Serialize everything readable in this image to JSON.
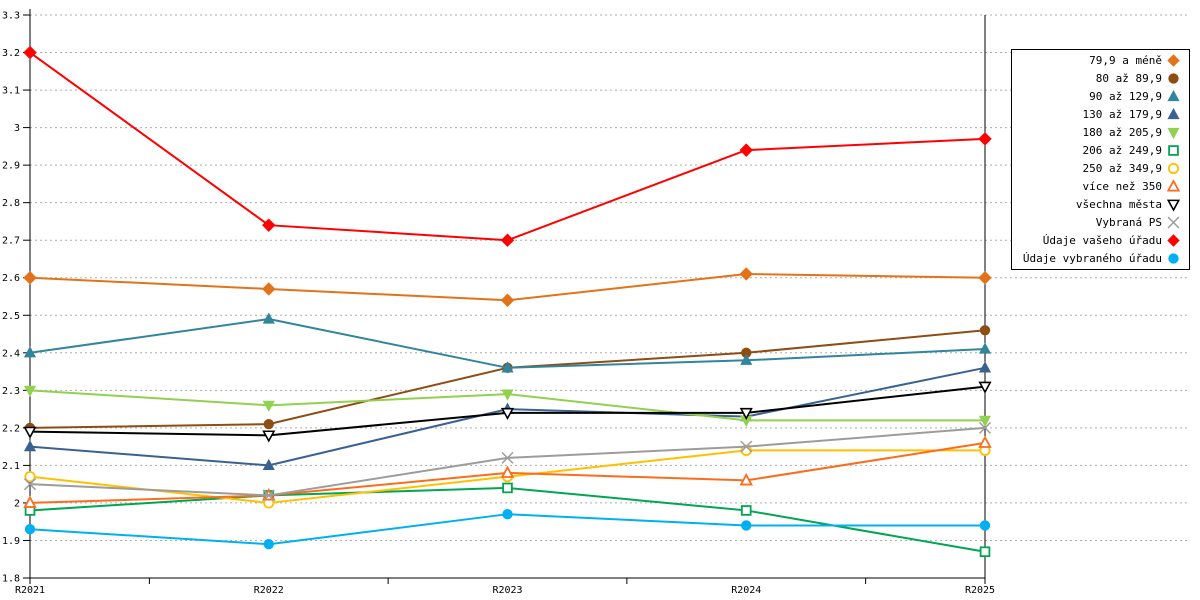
{
  "chart_data": {
    "type": "line",
    "title": "",
    "xlabel": "",
    "ylabel": "",
    "categories": [
      "R2021",
      "R2022",
      "R2023",
      "R2024",
      "R2025"
    ],
    "ylim": [
      1.8,
      3.3
    ],
    "y_tick_step": 0.1,
    "y_ticks": [
      "1.8",
      "1.9",
      "2",
      "2.1",
      "2.2",
      "2.3",
      "2.4",
      "2.5",
      "2.6",
      "2.7",
      "2.8",
      "2.9",
      "3",
      "3.1",
      "3.2",
      "3.3"
    ],
    "grid": "horizontal-dotted",
    "grid_color": "#ADADAD",
    "axis_color": "#000000",
    "legend_position": "right",
    "series": [
      {
        "name": "79,9 a méně",
        "color": "#E2731A",
        "marker": "diamond",
        "filled": true,
        "values": [
          2.6,
          2.57,
          2.54,
          2.61,
          2.6
        ]
      },
      {
        "name": "80 až 89,9",
        "color": "#8E4D13",
        "marker": "circle",
        "filled": true,
        "values": [
          2.2,
          2.21,
          2.36,
          2.4,
          2.46
        ]
      },
      {
        "name": "90 až 129,9",
        "color": "#31859C",
        "marker": "triangle-up",
        "filled": true,
        "values": [
          2.4,
          2.49,
          2.36,
          2.38,
          2.41
        ]
      },
      {
        "name": "130 až 179,9",
        "color": "#3A6191",
        "marker": "triangle-up",
        "filled": true,
        "values": [
          2.15,
          2.1,
          2.25,
          2.23,
          2.36
        ]
      },
      {
        "name": "180 až 205,9",
        "color": "#92D050",
        "marker": "triangle-down",
        "filled": true,
        "values": [
          2.3,
          2.26,
          2.29,
          2.22,
          2.22
        ]
      },
      {
        "name": "206 až 249,9",
        "color": "#00A651",
        "marker": "square",
        "filled": false,
        "values": [
          1.98,
          2.02,
          2.04,
          1.98,
          1.87
        ]
      },
      {
        "name": "250 až 349,9",
        "color": "#FFC000",
        "marker": "circle",
        "filled": false,
        "values": [
          2.07,
          2.0,
          2.07,
          2.14,
          2.14
        ]
      },
      {
        "name": "více než 350",
        "color": "#FB6D1D",
        "marker": "triangle-up",
        "filled": false,
        "values": [
          2.0,
          2.02,
          2.08,
          2.06,
          2.16
        ]
      },
      {
        "name": "všechna města",
        "color": "#000000",
        "marker": "triangle-down",
        "filled": false,
        "values": [
          2.19,
          2.18,
          2.24,
          2.24,
          2.31
        ]
      },
      {
        "name": "Vybraná PS",
        "color": "#9C9C9C",
        "marker": "x",
        "filled": false,
        "values": [
          2.05,
          2.02,
          2.12,
          2.15,
          2.2
        ]
      },
      {
        "name": "Údaje vašeho úřadu",
        "color": "#FF0000",
        "marker": "diamond",
        "filled": true,
        "values": [
          3.2,
          2.74,
          2.7,
          2.94,
          2.97
        ]
      },
      {
        "name": "Údaje vybraného úřadu",
        "color": "#00B0F0",
        "marker": "circle",
        "filled": true,
        "values": [
          1.93,
          1.89,
          1.97,
          1.94,
          1.94
        ]
      }
    ]
  }
}
